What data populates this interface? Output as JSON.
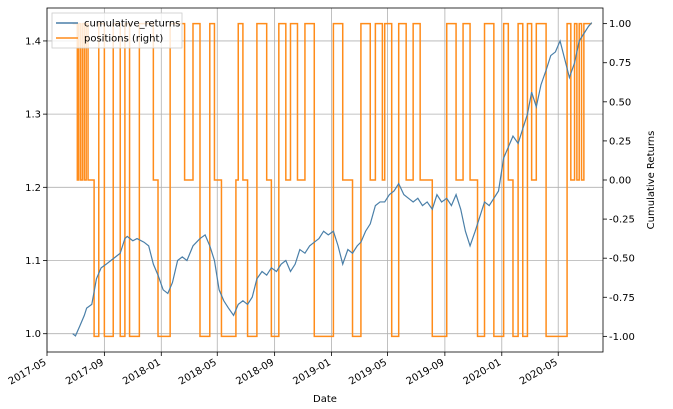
{
  "chart_data": {
    "type": "line",
    "xlabel": "Date",
    "ylabel_left": "",
    "ylabel_right": "Cumulative Returns",
    "x_ticks": [
      "2017-05",
      "2017-09",
      "2018-01",
      "2018-05",
      "2018-09",
      "2019-01",
      "2019-05",
      "2019-09",
      "2020-01",
      "2020-05"
    ],
    "x_range": [
      "2017-05-01",
      "2020-08-05"
    ],
    "ylim_left": [
      0.975,
      1.445
    ],
    "y_ticks_left": [
      1.0,
      1.1,
      1.2,
      1.3,
      1.4
    ],
    "ylim_right": [
      -1.1,
      1.1
    ],
    "y_ticks_right": [
      -1.0,
      -0.75,
      -0.5,
      -0.25,
      0.0,
      0.25,
      0.5,
      0.75,
      1.0
    ],
    "grid": true,
    "legend_position": "top-left",
    "colors": {
      "returns": "#4a7fa8",
      "positions": "#ff8c1a"
    },
    "series": [
      {
        "name": "cumulative_returns",
        "axis": "left",
        "points": [
          [
            "2017-06-25",
            1.0
          ],
          [
            "2017-07-01",
            0.997
          ],
          [
            "2017-07-10",
            1.01
          ],
          [
            "2017-07-20",
            1.025
          ],
          [
            "2017-07-25",
            1.035
          ],
          [
            "2017-08-05",
            1.04
          ],
          [
            "2017-08-15",
            1.075
          ],
          [
            "2017-08-25",
            1.09
          ],
          [
            "2017-09-05",
            1.095
          ],
          [
            "2017-09-15",
            1.1
          ],
          [
            "2017-09-25",
            1.105
          ],
          [
            "2017-10-05",
            1.11
          ],
          [
            "2017-10-15",
            1.13
          ],
          [
            "2017-10-20",
            1.133
          ],
          [
            "2017-11-01",
            1.127
          ],
          [
            "2017-11-10",
            1.13
          ],
          [
            "2017-11-25",
            1.125
          ],
          [
            "2017-12-05",
            1.12
          ],
          [
            "2017-12-15",
            1.095
          ],
          [
            "2017-12-25",
            1.08
          ],
          [
            "2018-01-05",
            1.06
          ],
          [
            "2018-01-15",
            1.055
          ],
          [
            "2018-01-25",
            1.07
          ],
          [
            "2018-02-05",
            1.1
          ],
          [
            "2018-02-15",
            1.105
          ],
          [
            "2018-02-25",
            1.1
          ],
          [
            "2018-03-10",
            1.12
          ],
          [
            "2018-03-25",
            1.13
          ],
          [
            "2018-04-05",
            1.135
          ],
          [
            "2018-04-15",
            1.12
          ],
          [
            "2018-04-25",
            1.1
          ],
          [
            "2018-05-05",
            1.06
          ],
          [
            "2018-05-15",
            1.045
          ],
          [
            "2018-05-25",
            1.035
          ],
          [
            "2018-06-05",
            1.025
          ],
          [
            "2018-06-15",
            1.04
          ],
          [
            "2018-06-25",
            1.045
          ],
          [
            "2018-07-05",
            1.04
          ],
          [
            "2018-07-15",
            1.05
          ],
          [
            "2018-07-25",
            1.075
          ],
          [
            "2018-08-05",
            1.085
          ],
          [
            "2018-08-15",
            1.08
          ],
          [
            "2018-08-25",
            1.09
          ],
          [
            "2018-09-05",
            1.085
          ],
          [
            "2018-09-15",
            1.095
          ],
          [
            "2018-09-25",
            1.1
          ],
          [
            "2018-10-05",
            1.085
          ],
          [
            "2018-10-15",
            1.095
          ],
          [
            "2018-10-25",
            1.115
          ],
          [
            "2018-11-05",
            1.11
          ],
          [
            "2018-11-15",
            1.12
          ],
          [
            "2018-11-25",
            1.125
          ],
          [
            "2018-12-05",
            1.13
          ],
          [
            "2018-12-15",
            1.14
          ],
          [
            "2018-12-25",
            1.135
          ],
          [
            "2019-01-05",
            1.14
          ],
          [
            "2019-01-15",
            1.12
          ],
          [
            "2019-01-25",
            1.095
          ],
          [
            "2019-02-05",
            1.115
          ],
          [
            "2019-02-15",
            1.11
          ],
          [
            "2019-02-25",
            1.12
          ],
          [
            "2019-03-05",
            1.125
          ],
          [
            "2019-03-15",
            1.14
          ],
          [
            "2019-03-25",
            1.15
          ],
          [
            "2019-04-05",
            1.175
          ],
          [
            "2019-04-15",
            1.18
          ],
          [
            "2019-04-25",
            1.18
          ],
          [
            "2019-05-05",
            1.19
          ],
          [
            "2019-05-15",
            1.195
          ],
          [
            "2019-05-25",
            1.205
          ],
          [
            "2019-06-05",
            1.19
          ],
          [
            "2019-06-15",
            1.185
          ],
          [
            "2019-06-25",
            1.18
          ],
          [
            "2019-07-05",
            1.185
          ],
          [
            "2019-07-15",
            1.175
          ],
          [
            "2019-07-25",
            1.18
          ],
          [
            "2019-08-05",
            1.17
          ],
          [
            "2019-08-15",
            1.19
          ],
          [
            "2019-08-25",
            1.18
          ],
          [
            "2019-09-05",
            1.185
          ],
          [
            "2019-09-15",
            1.175
          ],
          [
            "2019-09-25",
            1.19
          ],
          [
            "2019-10-05",
            1.17
          ],
          [
            "2019-10-15",
            1.14
          ],
          [
            "2019-10-25",
            1.12
          ],
          [
            "2019-11-05",
            1.14
          ],
          [
            "2019-11-15",
            1.16
          ],
          [
            "2019-11-25",
            1.18
          ],
          [
            "2019-12-05",
            1.175
          ],
          [
            "2019-12-15",
            1.185
          ],
          [
            "2019-12-25",
            1.195
          ],
          [
            "2020-01-05",
            1.24
          ],
          [
            "2020-01-15",
            1.255
          ],
          [
            "2020-01-25",
            1.27
          ],
          [
            "2020-02-05",
            1.26
          ],
          [
            "2020-02-15",
            1.28
          ],
          [
            "2020-02-25",
            1.3
          ],
          [
            "2020-03-05",
            1.33
          ],
          [
            "2020-03-15",
            1.31
          ],
          [
            "2020-03-25",
            1.34
          ],
          [
            "2020-04-05",
            1.36
          ],
          [
            "2020-04-15",
            1.38
          ],
          [
            "2020-04-25",
            1.385
          ],
          [
            "2020-05-05",
            1.4
          ],
          [
            "2020-05-15",
            1.375
          ],
          [
            "2020-05-25",
            1.35
          ],
          [
            "2020-06-05",
            1.37
          ],
          [
            "2020-06-15",
            1.4
          ],
          [
            "2020-06-25",
            1.41
          ],
          [
            "2020-07-05",
            1.42
          ],
          [
            "2020-07-12",
            1.425
          ]
        ]
      },
      {
        "name": "positions (right)",
        "axis": "right",
        "points": [
          [
            "2017-06-25",
            1
          ],
          [
            "2017-07-05",
            0
          ],
          [
            "2017-07-08",
            1
          ],
          [
            "2017-07-12",
            0
          ],
          [
            "2017-07-16",
            1
          ],
          [
            "2017-07-20",
            0
          ],
          [
            "2017-07-24",
            1
          ],
          [
            "2017-07-28",
            0
          ],
          [
            "2017-08-10",
            -1
          ],
          [
            "2017-08-20",
            1
          ],
          [
            "2017-09-01",
            -1
          ],
          [
            "2017-09-20",
            1
          ],
          [
            "2017-10-05",
            -1
          ],
          [
            "2017-10-15",
            1
          ],
          [
            "2017-10-25",
            -1
          ],
          [
            "2017-11-15",
            1
          ],
          [
            "2017-12-15",
            0
          ],
          [
            "2017-12-25",
            -1
          ],
          [
            "2018-01-20",
            1
          ],
          [
            "2018-02-20",
            0
          ],
          [
            "2018-03-10",
            1
          ],
          [
            "2018-03-25",
            -1
          ],
          [
            "2018-04-15",
            1
          ],
          [
            "2018-04-25",
            0
          ],
          [
            "2018-05-10",
            -1
          ],
          [
            "2018-06-10",
            0
          ],
          [
            "2018-06-15",
            1
          ],
          [
            "2018-06-25",
            0
          ],
          [
            "2018-07-05",
            -1
          ],
          [
            "2018-07-25",
            1
          ],
          [
            "2018-08-15",
            0
          ],
          [
            "2018-08-25",
            -1
          ],
          [
            "2018-09-10",
            1
          ],
          [
            "2018-09-25",
            0
          ],
          [
            "2018-10-05",
            1
          ],
          [
            "2018-10-20",
            0
          ],
          [
            "2018-11-05",
            1
          ],
          [
            "2018-11-25",
            -1
          ],
          [
            "2019-01-05",
            1
          ],
          [
            "2019-01-25",
            0
          ],
          [
            "2019-02-15",
            -1
          ],
          [
            "2019-03-05",
            1
          ],
          [
            "2019-03-25",
            0
          ],
          [
            "2019-04-05",
            1
          ],
          [
            "2019-04-20",
            0
          ],
          [
            "2019-04-25",
            1
          ],
          [
            "2019-05-10",
            -1
          ],
          [
            "2019-05-25",
            1
          ],
          [
            "2019-06-10",
            0
          ],
          [
            "2019-06-25",
            1
          ],
          [
            "2019-07-10",
            0
          ],
          [
            "2019-08-05",
            -1
          ],
          [
            "2019-09-05",
            1
          ],
          [
            "2019-09-25",
            0
          ],
          [
            "2019-10-10",
            1
          ],
          [
            "2019-10-25",
            0
          ],
          [
            "2019-11-10",
            -1
          ],
          [
            "2019-11-25",
            1
          ],
          [
            "2019-12-15",
            -1
          ],
          [
            "2020-01-05",
            1
          ],
          [
            "2020-01-15",
            0
          ],
          [
            "2020-01-25",
            -1
          ],
          [
            "2020-02-05",
            1
          ],
          [
            "2020-02-15",
            -1
          ],
          [
            "2020-02-25",
            1
          ],
          [
            "2020-03-05",
            0
          ],
          [
            "2020-03-15",
            1
          ],
          [
            "2020-04-05",
            -1
          ],
          [
            "2020-05-20",
            1
          ],
          [
            "2020-05-28",
            0
          ],
          [
            "2020-06-05",
            1
          ],
          [
            "2020-06-10",
            0
          ],
          [
            "2020-06-15",
            1
          ],
          [
            "2020-06-20",
            0
          ],
          [
            "2020-06-25",
            1
          ],
          [
            "2020-07-12",
            1
          ]
        ]
      }
    ]
  }
}
